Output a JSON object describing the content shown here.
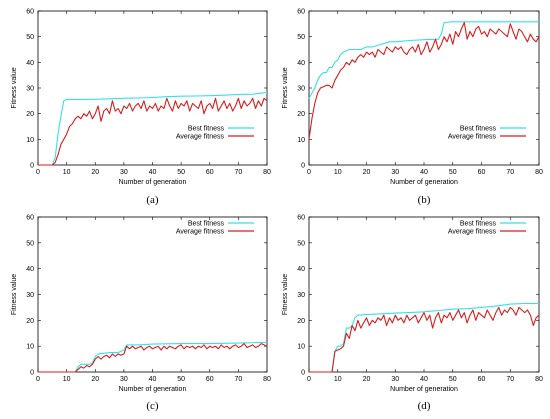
{
  "figure": {
    "colors": {
      "best": "#35e0ea",
      "average": "#d81e1e",
      "axis": "#000000"
    }
  },
  "chart_data": [
    {
      "type": "line",
      "caption": "(a)",
      "xlabel": "Number of generation",
      "ylabel": "Fitness value",
      "xlim": [
        0,
        80
      ],
      "ylim": [
        0,
        60
      ],
      "xticks": [
        0,
        10,
        20,
        30,
        40,
        50,
        60,
        70,
        80
      ],
      "yticks": [
        0,
        10,
        20,
        30,
        40,
        50,
        60
      ],
      "grid": false,
      "legend_position": "bottom-right",
      "series": [
        {
          "name": "Best fitness",
          "color": "#35e0ea",
          "x": [
            0,
            5,
            6,
            7,
            8,
            9,
            10,
            15,
            20,
            25,
            30,
            35,
            40,
            45,
            50,
            55,
            60,
            65,
            70,
            75,
            78,
            80
          ],
          "y": [
            0,
            0,
            3,
            12,
            19,
            25,
            25.5,
            25.5,
            25.6,
            25.8,
            26,
            26.1,
            26.3,
            26.6,
            26.8,
            26.9,
            27,
            27.2,
            27.5,
            27.6,
            28,
            28.2
          ]
        },
        {
          "name": "Average fitness",
          "color": "#d81e1e",
          "x": [
            0,
            5,
            6,
            7,
            8,
            9,
            10,
            11,
            12,
            13,
            14,
            15,
            16,
            17,
            18,
            19,
            20,
            21,
            22,
            23,
            24,
            25,
            26,
            27,
            28,
            29,
            30,
            31,
            32,
            33,
            34,
            35,
            36,
            37,
            38,
            39,
            40,
            41,
            42,
            43,
            44,
            45,
            46,
            47,
            48,
            49,
            50,
            51,
            52,
            53,
            54,
            55,
            56,
            57,
            58,
            59,
            60,
            61,
            62,
            63,
            64,
            65,
            66,
            67,
            68,
            69,
            70,
            71,
            72,
            73,
            74,
            75,
            76,
            77,
            78,
            79,
            80
          ],
          "y": [
            0,
            0,
            1,
            4,
            8,
            10,
            12,
            15,
            16,
            18,
            19,
            18,
            20,
            19,
            21,
            18,
            20,
            23,
            17,
            21,
            22,
            20,
            25,
            21,
            22,
            20,
            23,
            22,
            24,
            21,
            23,
            24,
            22,
            25,
            21,
            23,
            22,
            24,
            21,
            23,
            22,
            26,
            23,
            21,
            25,
            22,
            24,
            23,
            25,
            21,
            24,
            23,
            22,
            25,
            20,
            23,
            24,
            22,
            26,
            21,
            23,
            25,
            22,
            24,
            21,
            23,
            26,
            22,
            25,
            23,
            24,
            26,
            22,
            25,
            23,
            26,
            25
          ]
        }
      ]
    },
    {
      "type": "line",
      "caption": "(b)",
      "xlabel": "Number of generation",
      "ylabel": "Fitness value",
      "xlim": [
        0,
        80
      ],
      "ylim": [
        0,
        60
      ],
      "xticks": [
        0,
        10,
        20,
        30,
        40,
        50,
        60,
        70,
        80
      ],
      "yticks": [
        0,
        10,
        20,
        30,
        40,
        50,
        60
      ],
      "grid": false,
      "legend_position": "bottom-right",
      "series": [
        {
          "name": "Best fitness",
          "color": "#35e0ea",
          "x": [
            0,
            1,
            2,
            3,
            4,
            5,
            6,
            7,
            8,
            9,
            10,
            11,
            12,
            14,
            16,
            18,
            20,
            22,
            25,
            28,
            30,
            35,
            40,
            45,
            46,
            47,
            50,
            55,
            60,
            65,
            70,
            75,
            80
          ],
          "y": [
            26,
            28,
            30,
            33,
            35,
            36,
            36,
            38,
            38,
            40,
            41,
            43,
            44,
            45,
            45,
            45,
            46,
            46,
            47,
            48,
            48,
            48.5,
            48.8,
            49,
            51,
            55.5,
            55.8,
            55.8,
            55.8,
            55.8,
            55.8,
            55.8,
            55.8
          ]
        },
        {
          "name": "Average fitness",
          "color": "#d81e1e",
          "x": [
            0,
            1,
            2,
            3,
            4,
            5,
            6,
            7,
            8,
            9,
            10,
            11,
            12,
            13,
            14,
            15,
            16,
            17,
            18,
            19,
            20,
            21,
            22,
            23,
            24,
            25,
            26,
            27,
            28,
            29,
            30,
            31,
            32,
            33,
            34,
            35,
            36,
            37,
            38,
            39,
            40,
            41,
            42,
            43,
            44,
            45,
            46,
            47,
            48,
            49,
            50,
            51,
            52,
            53,
            54,
            55,
            56,
            57,
            58,
            59,
            60,
            61,
            62,
            63,
            64,
            65,
            66,
            67,
            68,
            69,
            70,
            71,
            72,
            73,
            74,
            75,
            76,
            77,
            78,
            79,
            80
          ],
          "y": [
            10,
            18,
            24,
            28,
            30,
            30.5,
            31,
            31,
            30,
            33,
            35,
            37,
            38,
            40,
            39,
            41,
            40,
            42,
            43,
            42,
            44,
            43,
            44,
            42,
            45,
            44,
            43,
            46,
            45,
            44,
            46,
            45,
            46,
            44,
            43,
            45,
            46,
            44,
            47,
            43,
            45,
            48,
            44,
            46,
            49,
            45,
            47,
            50,
            48,
            51,
            47,
            52,
            50,
            53,
            55.5,
            49,
            52,
            50,
            53,
            54,
            51,
            52,
            50,
            53,
            52,
            51,
            53,
            52,
            51,
            50,
            55,
            52,
            49,
            53,
            52,
            50,
            48,
            51,
            49,
            48,
            50
          ]
        }
      ]
    },
    {
      "type": "line",
      "caption": "(c)",
      "xlabel": "Number of generation",
      "ylabel": "Fitness value",
      "xlim": [
        0,
        80
      ],
      "ylim": [
        0,
        60
      ],
      "xticks": [
        0,
        10,
        20,
        30,
        40,
        50,
        60,
        70,
        80
      ],
      "yticks": [
        0,
        10,
        20,
        30,
        40,
        50,
        60
      ],
      "grid": false,
      "legend_position": "top-right",
      "series": [
        {
          "name": "Best fitness",
          "color": "#35e0ea",
          "x": [
            0,
            13,
            14,
            15,
            18,
            19,
            20,
            21,
            25,
            28,
            29,
            30,
            31,
            35,
            40,
            50,
            60,
            70,
            80
          ],
          "y": [
            0,
            0,
            2,
            3,
            3,
            3.5,
            6,
            7,
            7.5,
            7.5,
            8,
            8.5,
            10.5,
            10.5,
            10.8,
            11,
            11,
            11.2,
            11.5
          ]
        },
        {
          "name": "Average fitness",
          "color": "#d81e1e",
          "x": [
            0,
            13,
            14,
            15,
            16,
            17,
            18,
            19,
            20,
            21,
            22,
            23,
            24,
            25,
            26,
            27,
            28,
            29,
            30,
            31,
            32,
            33,
            34,
            35,
            36,
            37,
            38,
            39,
            40,
            41,
            42,
            43,
            44,
            45,
            46,
            47,
            48,
            49,
            50,
            51,
            52,
            53,
            54,
            55,
            56,
            57,
            58,
            59,
            60,
            61,
            62,
            63,
            64,
            65,
            66,
            67,
            68,
            69,
            70,
            71,
            72,
            73,
            74,
            75,
            76,
            77,
            78,
            79,
            80
          ],
          "y": [
            0,
            0,
            1,
            2,
            1.5,
            2.5,
            2,
            3,
            5,
            6,
            5,
            6,
            6.5,
            5.5,
            7,
            6,
            7,
            6.5,
            7,
            10,
            9,
            10,
            9,
            9.5,
            10,
            8.5,
            9.5,
            10,
            9,
            9.5,
            10,
            8.5,
            10,
            9,
            10,
            9.5,
            9,
            10,
            10.5,
            9,
            10,
            9.5,
            10,
            9,
            10,
            9.5,
            10.5,
            9,
            10,
            9.5,
            10,
            9,
            10.5,
            9.5,
            10,
            9,
            10,
            10.5,
            9.5,
            10,
            11,
            9.5,
            10,
            10.5,
            9.5,
            10,
            11,
            10.5,
            10
          ]
        }
      ]
    },
    {
      "type": "line",
      "caption": "(d)",
      "xlabel": "Number of generation",
      "ylabel": "Fitness value",
      "xlim": [
        0,
        80
      ],
      "ylim": [
        0,
        60
      ],
      "xticks": [
        0,
        10,
        20,
        30,
        40,
        50,
        60,
        70,
        80
      ],
      "yticks": [
        0,
        10,
        20,
        30,
        40,
        50,
        60
      ],
      "grid": false,
      "legend_position": "top-right",
      "series": [
        {
          "name": "Best fitness",
          "color": "#35e0ea",
          "x": [
            0,
            8,
            9,
            10,
            11,
            12,
            13,
            14,
            15,
            16,
            17,
            20,
            25,
            30,
            35,
            40,
            45,
            50,
            55,
            60,
            65,
            70,
            75,
            80
          ],
          "y": [
            0,
            0,
            8,
            10,
            10,
            11,
            17,
            17,
            18,
            21,
            22,
            22.3,
            22.5,
            22.8,
            23,
            23.3,
            23.8,
            24.3,
            24.5,
            25,
            25.5,
            26.3,
            26.5,
            26.5
          ]
        },
        {
          "name": "Average fitness",
          "color": "#d81e1e",
          "x": [
            0,
            8,
            9,
            10,
            11,
            12,
            13,
            14,
            15,
            16,
            17,
            18,
            19,
            20,
            21,
            22,
            23,
            24,
            25,
            26,
            27,
            28,
            29,
            30,
            31,
            32,
            33,
            34,
            35,
            36,
            37,
            38,
            39,
            40,
            41,
            42,
            43,
            44,
            45,
            46,
            47,
            48,
            49,
            50,
            51,
            52,
            53,
            54,
            55,
            56,
            57,
            58,
            59,
            60,
            61,
            62,
            63,
            64,
            65,
            66,
            67,
            68,
            69,
            70,
            71,
            72,
            73,
            74,
            75,
            76,
            77,
            78,
            79,
            80
          ],
          "y": [
            0,
            0,
            8,
            8.5,
            9,
            10,
            15,
            13,
            18,
            16,
            20,
            17,
            19,
            21,
            18,
            20,
            19,
            21,
            20,
            22,
            18,
            21,
            19,
            22,
            20,
            21,
            19,
            22,
            20,
            21,
            22,
            19,
            21,
            23,
            20,
            22,
            17,
            21,
            23,
            19,
            22,
            21,
            23,
            20,
            22,
            24,
            21,
            23,
            19,
            22,
            24,
            20,
            23,
            22,
            21,
            24,
            22,
            20,
            23,
            25,
            22,
            24,
            23,
            25,
            24,
            22,
            25,
            24,
            23,
            24,
            22,
            18,
            21,
            22
          ]
        }
      ]
    }
  ]
}
